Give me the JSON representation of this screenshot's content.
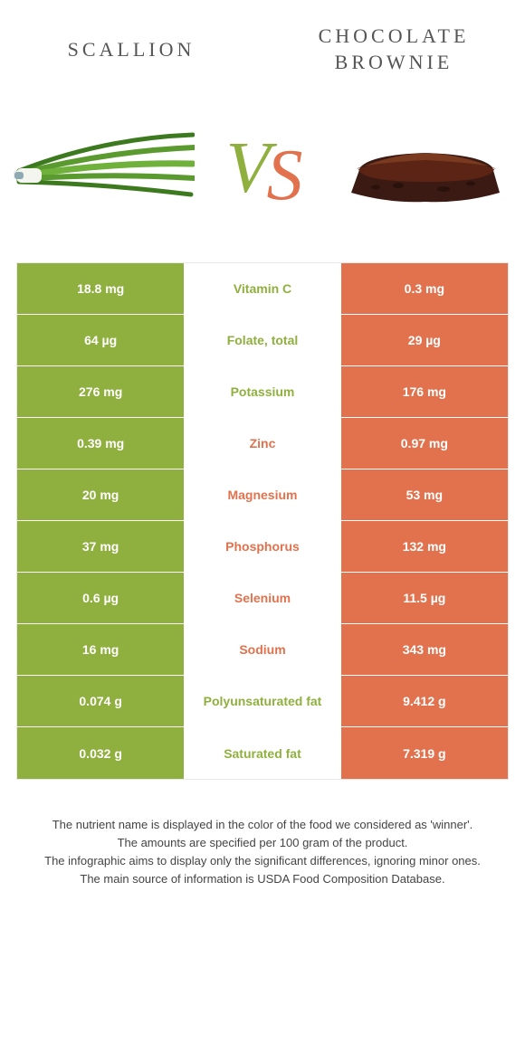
{
  "colors": {
    "green": "#8fb03e",
    "orange": "#e2724d",
    "vs_green": "#8fb03e",
    "vs_orange": "#e2724d",
    "text": "#555555"
  },
  "header": {
    "left": "SCALLION",
    "right": "CHOCOLATE BROWNIE"
  },
  "vs": {
    "v": "V",
    "s": "S"
  },
  "rows": [
    {
      "left": "18.8 mg",
      "mid": "Vitamin C",
      "right": "0.3 mg",
      "winner": "left"
    },
    {
      "left": "64 µg",
      "mid": "Folate, total",
      "right": "29 µg",
      "winner": "left"
    },
    {
      "left": "276 mg",
      "mid": "Potassium",
      "right": "176 mg",
      "winner": "left"
    },
    {
      "left": "0.39 mg",
      "mid": "Zinc",
      "right": "0.97 mg",
      "winner": "right"
    },
    {
      "left": "20 mg",
      "mid": "Magnesium",
      "right": "53 mg",
      "winner": "right"
    },
    {
      "left": "37 mg",
      "mid": "Phosphorus",
      "right": "132 mg",
      "winner": "right"
    },
    {
      "left": "0.6 µg",
      "mid": "Selenium",
      "right": "11.5 µg",
      "winner": "right"
    },
    {
      "left": "16 mg",
      "mid": "Sodium",
      "right": "343 mg",
      "winner": "right"
    },
    {
      "left": "0.074 g",
      "mid": "Polyunsaturated fat",
      "right": "9.412 g",
      "winner": "left"
    },
    {
      "left": "0.032 g",
      "mid": "Saturated fat",
      "right": "7.319 g",
      "winner": "left"
    }
  ],
  "footnotes": [
    "The nutrient name is displayed in the color of the food we considered as 'winner'.",
    "The amounts are specified per 100 gram of the product.",
    "The infographic aims to display only the significant differences, ignoring minor ones.",
    "The main source of information is USDA Food Composition Database."
  ]
}
